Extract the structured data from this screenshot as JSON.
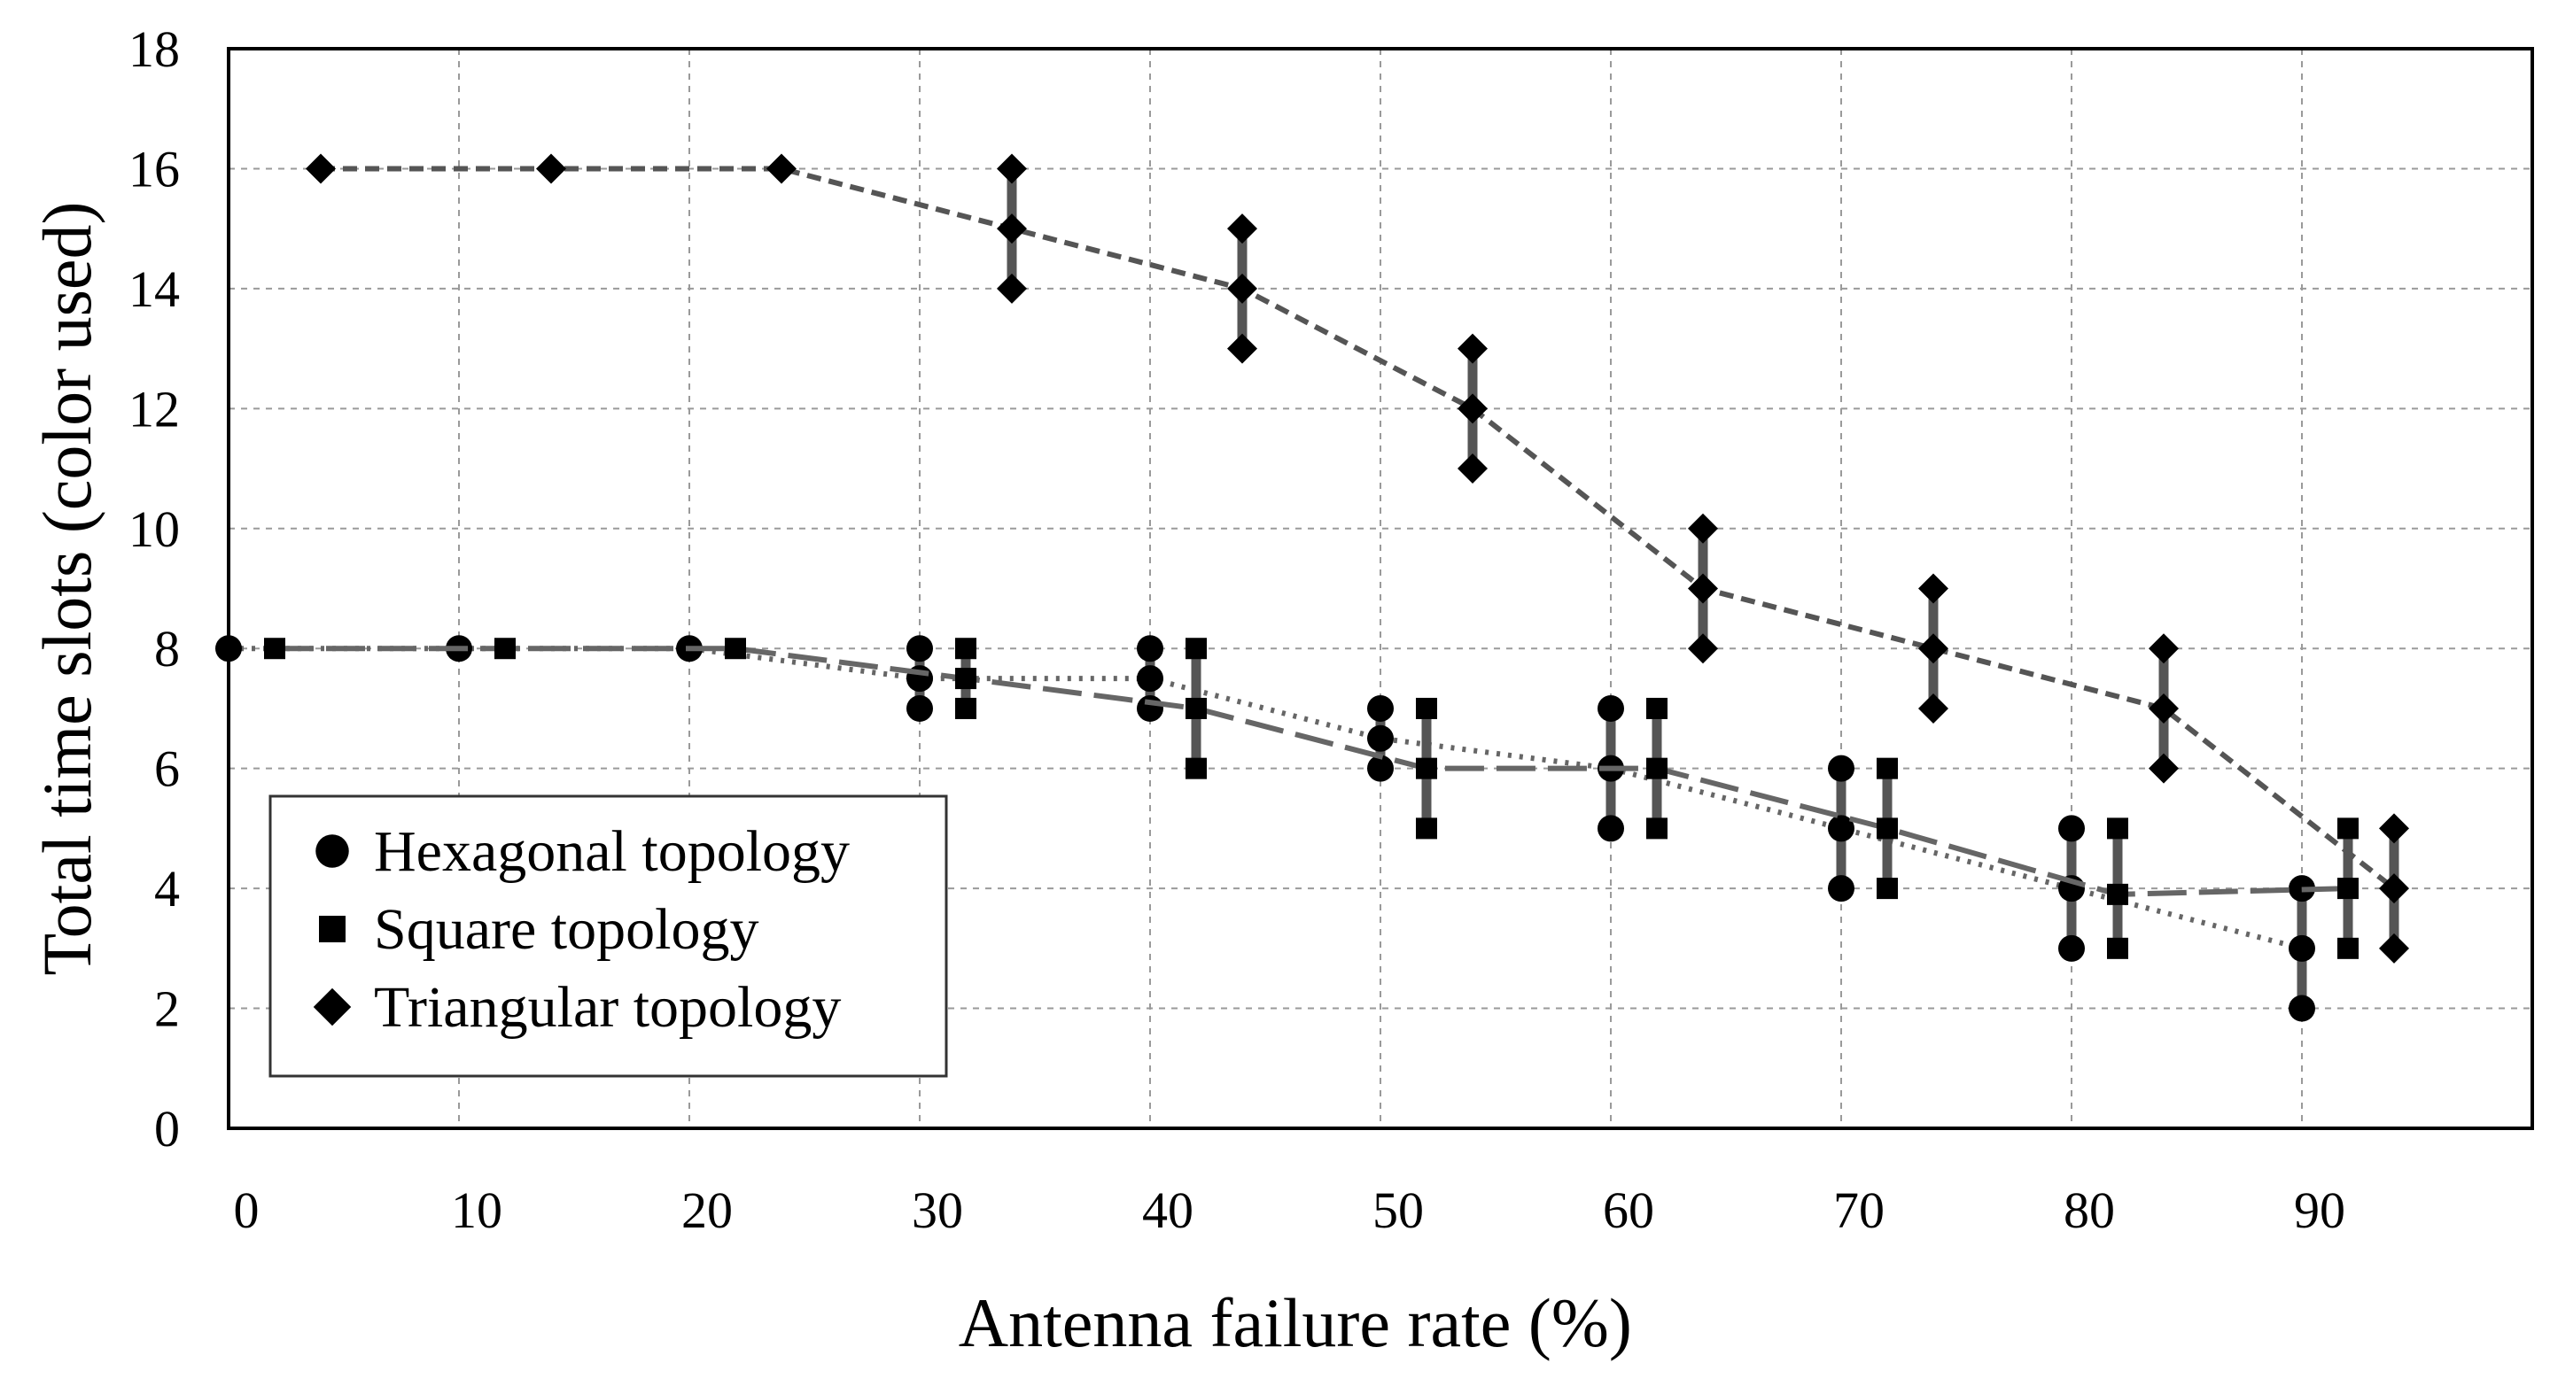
{
  "chart_data": {
    "type": "scatter",
    "title": "",
    "xlabel": "Antenna failure rate (%)",
    "ylabel": "Total time slots (color used)",
    "xlim": [
      0,
      100
    ],
    "ylim": [
      0,
      18
    ],
    "xticks": [
      0,
      10,
      20,
      30,
      40,
      50,
      60,
      70,
      80,
      90
    ],
    "yticks": [
      0,
      2,
      4,
      6,
      8,
      10,
      12,
      14,
      16,
      18
    ],
    "x_tick_labels": [
      "0",
      "10",
      "20",
      "30",
      "40",
      "50",
      "60",
      "70",
      "80",
      "90"
    ],
    "y_tick_labels": [
      "0",
      "2",
      "4",
      "6",
      "8",
      "10",
      "12",
      "14",
      "16",
      "18"
    ],
    "grid": true,
    "legend_position": "bottom-left",
    "series": [
      {
        "name": "Hexagonal topology",
        "marker": "circle",
        "line_style": "dotted",
        "color": "#000000",
        "line_color": "#666666",
        "points": [
          {
            "x": 0,
            "mean": 8,
            "min": 8,
            "max": 8
          },
          {
            "x": 10,
            "mean": 8,
            "min": 8,
            "max": 8
          },
          {
            "x": 20,
            "mean": 8,
            "min": 8,
            "max": 8
          },
          {
            "x": 30,
            "mean": 7.5,
            "min": 7,
            "max": 8
          },
          {
            "x": 40,
            "mean": 7.5,
            "min": 7,
            "max": 8
          },
          {
            "x": 50,
            "mean": 6.5,
            "min": 6,
            "max": 7
          },
          {
            "x": 60,
            "mean": 6,
            "min": 5,
            "max": 7
          },
          {
            "x": 70,
            "mean": 5,
            "min": 4,
            "max": 6
          },
          {
            "x": 80,
            "mean": 4,
            "min": 3,
            "max": 5
          },
          {
            "x": 90,
            "mean": 3,
            "min": 2,
            "max": 4
          }
        ]
      },
      {
        "name": "Square topology",
        "marker": "square",
        "line_style": "long-dash",
        "color": "#000000",
        "line_color": "#666666",
        "points": [
          {
            "x": 2,
            "mean": 8,
            "min": 8,
            "max": 8
          },
          {
            "x": 12,
            "mean": 8,
            "min": 8,
            "max": 8
          },
          {
            "x": 22,
            "mean": 8,
            "min": 8,
            "max": 8
          },
          {
            "x": 32,
            "mean": 7.5,
            "min": 7,
            "max": 8
          },
          {
            "x": 42,
            "mean": 7,
            "min": 6,
            "max": 8
          },
          {
            "x": 52,
            "mean": 6,
            "min": 5,
            "max": 7
          },
          {
            "x": 62,
            "mean": 6,
            "min": 5,
            "max": 7
          },
          {
            "x": 72,
            "mean": 5,
            "min": 4,
            "max": 6
          },
          {
            "x": 82,
            "mean": 3.9,
            "min": 3,
            "max": 5
          },
          {
            "x": 92,
            "mean": 4,
            "min": 3,
            "max": 5
          }
        ]
      },
      {
        "name": "Triangular topology",
        "marker": "diamond",
        "line_style": "dashed",
        "color": "#000000",
        "line_color": "#555555",
        "points": [
          {
            "x": 4,
            "mean": 16,
            "min": 16,
            "max": 16
          },
          {
            "x": 14,
            "mean": 16,
            "min": 16,
            "max": 16
          },
          {
            "x": 24,
            "mean": 16,
            "min": 16,
            "max": 16
          },
          {
            "x": 34,
            "mean": 15,
            "min": 14,
            "max": 16
          },
          {
            "x": 44,
            "mean": 14,
            "min": 13,
            "max": 15
          },
          {
            "x": 54,
            "mean": 12,
            "min": 11,
            "max": 13
          },
          {
            "x": 64,
            "mean": 9,
            "min": 8,
            "max": 10
          },
          {
            "x": 74,
            "mean": 8,
            "min": 7,
            "max": 9
          },
          {
            "x": 84,
            "mean": 7,
            "min": 6,
            "max": 8
          },
          {
            "x": 94,
            "mean": 4,
            "min": 3,
            "max": 5
          }
        ]
      }
    ]
  }
}
